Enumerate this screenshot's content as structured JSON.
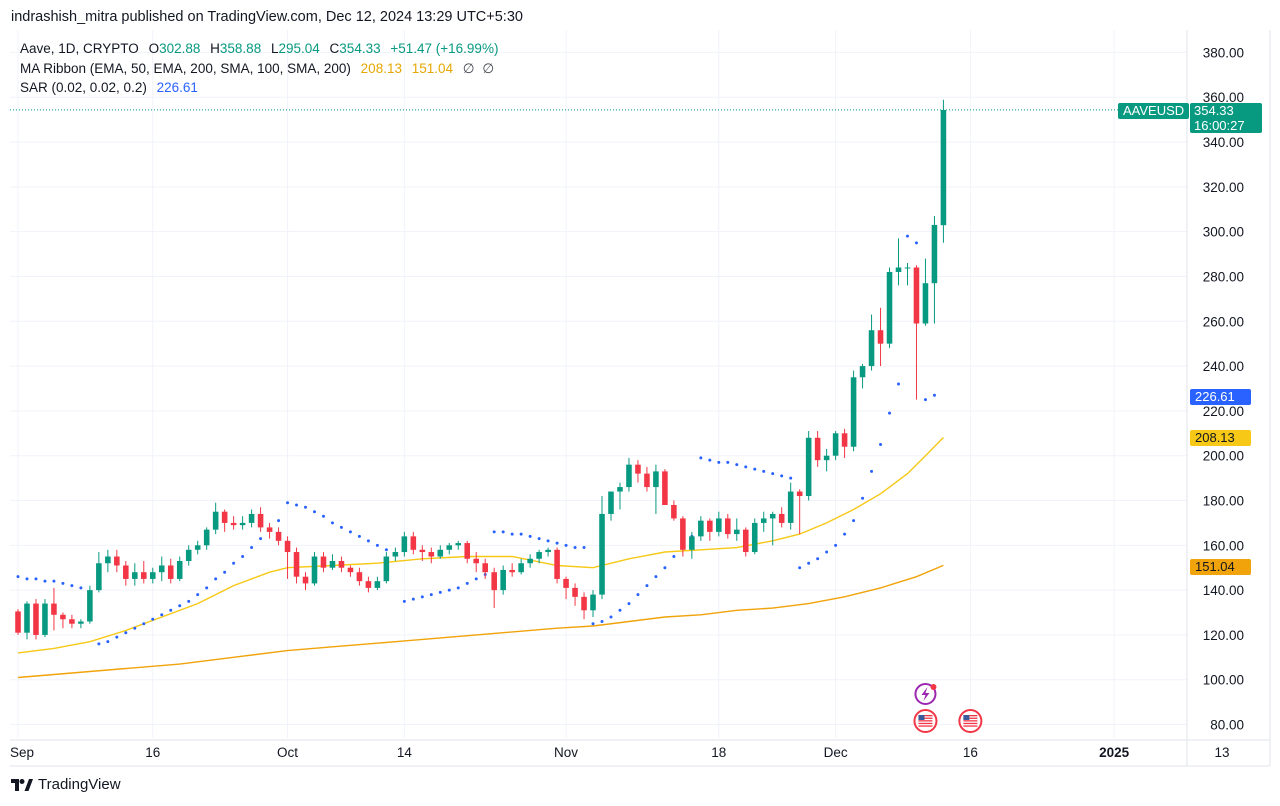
{
  "header": {
    "text": "indrashish_mitra published on TradingView.com, Dec 12, 2024 13:29 UTC+5:30"
  },
  "legend": {
    "symbol": "Aave, 1D, CRYPTO",
    "o_label": "O",
    "o_value": "302.88",
    "h_label": "H",
    "h_value": "358.88",
    "l_label": "L",
    "l_value": "295.04",
    "c_label": "C",
    "c_value": "354.33",
    "change": "+51.47 (+16.99%)",
    "ma_label": "MA Ribbon (EMA, 50, EMA, 200, SMA, 100, SMA, 200)",
    "ma_value_1": "208.13",
    "ma_value_2": "151.04",
    "ma_na_1": "∅",
    "ma_na_2": "∅",
    "sar_label": "SAR (0.02, 0.02, 0.2)",
    "sar_value": "226.61"
  },
  "price_tags": {
    "symbol_tag": "AAVEUSD",
    "last_price": "354.33",
    "countdown": "16:00:27",
    "sar": "226.61",
    "ma1": "208.13",
    "ma2": "151.04"
  },
  "colors": {
    "up": "#089981",
    "down": "#f23645",
    "sar": "#2962ff",
    "ma_fast": "#f7c815",
    "ma_slow": "#f0a30a",
    "grid": "#f0f3fa"
  },
  "footer": {
    "brand": "TradingView"
  },
  "event_icons": [
    "lightning-event-icon",
    "us-flag-event-icon",
    "us-flag-event-icon"
  ],
  "chart_data": {
    "type": "candlestick",
    "symbol": "AAVEUSD",
    "interval": "1D",
    "y_axis": {
      "ticks": [
        "80.00",
        "100.00",
        "120.00",
        "140.00",
        "160.00",
        "180.00",
        "200.00",
        "220.00",
        "240.00",
        "260.00",
        "280.00",
        "300.00",
        "320.00",
        "340.00",
        "360.00",
        "380.00"
      ],
      "ylim": [
        74,
        390
      ]
    },
    "x_axis": {
      "range_day_index": [
        0,
        131
      ],
      "ticks": [
        {
          "label": "Sep",
          "day": 0,
          "bold": false
        },
        {
          "label": "16",
          "day": 15,
          "bold": false
        },
        {
          "label": "Oct",
          "day": 30,
          "bold": false
        },
        {
          "label": "14",
          "day": 43,
          "bold": false
        },
        {
          "label": "Nov",
          "day": 61,
          "bold": false
        },
        {
          "label": "18",
          "day": 78,
          "bold": false
        },
        {
          "label": "Dec",
          "day": 91,
          "bold": false
        },
        {
          "label": "16",
          "day": 106,
          "bold": false
        },
        {
          "label": "2025",
          "day": 122,
          "bold": true
        },
        {
          "label": "13",
          "day": 134,
          "bold": false
        }
      ]
    },
    "candles": [
      [
        130.5,
        131.5,
        120.0,
        121.0
      ],
      [
        121.0,
        135.0,
        118.0,
        134.0
      ],
      [
        134.0,
        136.0,
        118.0,
        120.0
      ],
      [
        120.0,
        136.0,
        119.0,
        134.0
      ],
      [
        134.0,
        141.0,
        122.0,
        129.0
      ],
      [
        129.0,
        130.0,
        123.0,
        127.0
      ],
      [
        127.0,
        129.0,
        123.0,
        125.0
      ],
      [
        125.0,
        127.0,
        123.0,
        126.0
      ],
      [
        126.0,
        142.0,
        125.0,
        140.0
      ],
      [
        140.0,
        157.0,
        139.0,
        152.0
      ],
      [
        152.0,
        158.0,
        148.0,
        155.0
      ],
      [
        155.0,
        158.0,
        148.0,
        151.0
      ],
      [
        151.0,
        153.0,
        142.0,
        145.0
      ],
      [
        145.0,
        152.0,
        142.0,
        148.0
      ],
      [
        148.0,
        153.0,
        143.0,
        145.0
      ],
      [
        145.0,
        150.0,
        143.0,
        148.0
      ],
      [
        148.0,
        155.0,
        144.0,
        151.0
      ],
      [
        151.0,
        154.0,
        143.0,
        145.0
      ],
      [
        145.0,
        155.0,
        144.0,
        153.0
      ],
      [
        153.0,
        160.0,
        151.0,
        158.0
      ],
      [
        158.0,
        162.0,
        156.0,
        160.0
      ],
      [
        160.0,
        168.0,
        158.0,
        167.0
      ],
      [
        167.0,
        179.0,
        165.0,
        175.0
      ],
      [
        175.0,
        176.0,
        166.0,
        170.0
      ],
      [
        170.0,
        173.0,
        167.0,
        169.0
      ],
      [
        169.0,
        173.0,
        167.0,
        170.0
      ],
      [
        170.0,
        176.0,
        168.0,
        174.0
      ],
      [
        174.0,
        177.0,
        166.0,
        168.0
      ],
      [
        168.0,
        170.0,
        163.0,
        166.0
      ],
      [
        166.0,
        168.0,
        160.0,
        162.0
      ],
      [
        162.0,
        164.0,
        145.0,
        157.0
      ],
      [
        157.0,
        159.0,
        143.0,
        146.0
      ],
      [
        146.0,
        148.0,
        140.0,
        143.0
      ],
      [
        143.0,
        157.0,
        142.0,
        155.0
      ],
      [
        155.0,
        157.0,
        148.0,
        150.0
      ],
      [
        150.0,
        156.0,
        149.0,
        153.0
      ],
      [
        153.0,
        155.0,
        148.0,
        150.0
      ],
      [
        150.0,
        151.0,
        146.0,
        148.0
      ],
      [
        148.0,
        150.0,
        142.0,
        144.0
      ],
      [
        144.0,
        146.0,
        139.0,
        141.0
      ],
      [
        141.0,
        146.0,
        140.0,
        144.0
      ],
      [
        144.0,
        157.0,
        143.0,
        155.0
      ],
      [
        155.0,
        159.0,
        153.0,
        157.0
      ],
      [
        157.0,
        166.0,
        155.0,
        164.0
      ],
      [
        164.0,
        166.0,
        156.0,
        158.0
      ],
      [
        158.0,
        160.0,
        153.0,
        157.0
      ],
      [
        157.0,
        159.0,
        152.0,
        155.0
      ],
      [
        155.0,
        160.0,
        154.0,
        158.0
      ],
      [
        158.0,
        161.0,
        156.0,
        160.0
      ],
      [
        160.0,
        162.0,
        158.0,
        161.0
      ],
      [
        161.0,
        162.0,
        152.0,
        154.0
      ],
      [
        154.0,
        157.0,
        148.0,
        152.0
      ],
      [
        152.0,
        154.0,
        145.0,
        148.0
      ],
      [
        148.0,
        150.0,
        132.0,
        140.0
      ],
      [
        140.0,
        151.0,
        138.0,
        149.0
      ],
      [
        149.0,
        152.0,
        146.0,
        148.0
      ],
      [
        148.0,
        154.0,
        147.0,
        152.0
      ],
      [
        152.0,
        156.0,
        150.0,
        154.0
      ],
      [
        154.0,
        158.0,
        152.0,
        157.0
      ],
      [
        157.0,
        159.0,
        155.0,
        158.0
      ],
      [
        158.0,
        159.0,
        143.0,
        145.0
      ],
      [
        145.0,
        146.0,
        136.0,
        141.0
      ],
      [
        141.0,
        143.0,
        133.0,
        137.0
      ],
      [
        137.0,
        139.0,
        127.0,
        131.0
      ],
      [
        131.0,
        140.0,
        128.0,
        138.0
      ],
      [
        138.0,
        182.0,
        136.0,
        174.0
      ],
      [
        174.0,
        184.0,
        171.0,
        184.0
      ],
      [
        184.0,
        188.0,
        176.0,
        186.0
      ],
      [
        186.0,
        199.0,
        184.0,
        196.0
      ],
      [
        196.0,
        198.0,
        188.0,
        192.0
      ],
      [
        192.0,
        195.0,
        184.0,
        186.0
      ],
      [
        186.0,
        196.0,
        174.0,
        193.0
      ],
      [
        193.0,
        194.0,
        180.0,
        178.0
      ],
      [
        178.0,
        180.0,
        171.0,
        172.0
      ],
      [
        172.0,
        173.0,
        155.0,
        158.0
      ],
      [
        158.0,
        166.0,
        154.0,
        164.0
      ],
      [
        164.0,
        173.0,
        162.0,
        171.0
      ],
      [
        171.0,
        172.0,
        162.0,
        166.0
      ],
      [
        166.0,
        175.0,
        164.0,
        172.0
      ],
      [
        172.0,
        174.0,
        163.0,
        165.0
      ],
      [
        165.0,
        172.0,
        162.0,
        167.0
      ],
      [
        167.0,
        168.0,
        155.0,
        157.0
      ],
      [
        157.0,
        172.0,
        156.0,
        170.0
      ],
      [
        170.0,
        175.0,
        166.0,
        172.0
      ],
      [
        172.0,
        175.0,
        160.0,
        174.0
      ],
      [
        174.0,
        177.0,
        168.0,
        170.0
      ],
      [
        170.0,
        188.0,
        167.0,
        184.0
      ],
      [
        184.0,
        185.0,
        165.0,
        182.0
      ],
      [
        182.0,
        211.0,
        180.0,
        208.0
      ],
      [
        208.0,
        211.0,
        195.0,
        198.0
      ],
      [
        198.0,
        203.0,
        193.0,
        200.0
      ],
      [
        200.0,
        211.0,
        198.0,
        210.0
      ],
      [
        210.0,
        212.0,
        199.0,
        204.0
      ],
      [
        204.0,
        238.0,
        202.0,
        235.0
      ],
      [
        235.0,
        241.0,
        230.0,
        240.0
      ],
      [
        240.0,
        263.0,
        238.0,
        256.0
      ],
      [
        256.0,
        266.0,
        240.0,
        250.0
      ],
      [
        250.0,
        284.0,
        248.0,
        282.0
      ],
      [
        282.0,
        297.0,
        276.0,
        284.0
      ],
      [
        284.0,
        286.0,
        276.0,
        284.0
      ],
      [
        284.0,
        285.0,
        225.0,
        259.0
      ],
      [
        259.0,
        288.0,
        258.0,
        277.0
      ],
      [
        277.0,
        307.0,
        259.0,
        303.0
      ],
      [
        302.88,
        358.88,
        295.04,
        354.33
      ]
    ],
    "series": [
      {
        "name": "EMA 50",
        "color": "#f7c815",
        "points": [
          [
            0,
            112
          ],
          [
            4,
            114
          ],
          [
            8,
            117
          ],
          [
            12,
            122
          ],
          [
            16,
            128
          ],
          [
            20,
            134
          ],
          [
            24,
            142
          ],
          [
            28,
            148
          ],
          [
            30,
            150
          ],
          [
            35,
            151
          ],
          [
            40,
            152
          ],
          [
            45,
            154
          ],
          [
            50,
            155
          ],
          [
            55,
            155
          ],
          [
            60,
            151
          ],
          [
            64,
            150
          ],
          [
            68,
            154
          ],
          [
            72,
            157
          ],
          [
            76,
            158
          ],
          [
            80,
            159
          ],
          [
            84,
            162
          ],
          [
            87,
            165
          ],
          [
            90,
            170
          ],
          [
            93,
            176
          ],
          [
            96,
            183
          ],
          [
            99,
            192
          ],
          [
            101,
            200
          ],
          [
            103,
            208.13
          ]
        ]
      },
      {
        "name": "SMA 100",
        "color": "#f0a30a",
        "points": [
          [
            0,
            101
          ],
          [
            6,
            103
          ],
          [
            12,
            105
          ],
          [
            18,
            107
          ],
          [
            24,
            110
          ],
          [
            30,
            113
          ],
          [
            36,
            115
          ],
          [
            42,
            117
          ],
          [
            48,
            119
          ],
          [
            54,
            121
          ],
          [
            60,
            123
          ],
          [
            64,
            124
          ],
          [
            68,
            126
          ],
          [
            72,
            128
          ],
          [
            76,
            129
          ],
          [
            80,
            131
          ],
          [
            84,
            132
          ],
          [
            88,
            134
          ],
          [
            92,
            137
          ],
          [
            96,
            141
          ],
          [
            100,
            146
          ],
          [
            103,
            151.04
          ]
        ]
      }
    ],
    "sar": [
      [
        0,
        146
      ],
      [
        1,
        145
      ],
      [
        2,
        145
      ],
      [
        3,
        144
      ],
      [
        4,
        144
      ],
      [
        5,
        143
      ],
      [
        6,
        142
      ],
      [
        7,
        141
      ],
      [
        9,
        116
      ],
      [
        10,
        117
      ],
      [
        11,
        119
      ],
      [
        12,
        121
      ],
      [
        13,
        123
      ],
      [
        14,
        125
      ],
      [
        15,
        127
      ],
      [
        16,
        129
      ],
      [
        17,
        131
      ],
      [
        18,
        133
      ],
      [
        19,
        135
      ],
      [
        20,
        138
      ],
      [
        21,
        141
      ],
      [
        22,
        145
      ],
      [
        23,
        148
      ],
      [
        24,
        152
      ],
      [
        25,
        155
      ],
      [
        26,
        159
      ],
      [
        27,
        163
      ],
      [
        28,
        167
      ],
      [
        29,
        171
      ],
      [
        30,
        179
      ],
      [
        31,
        178
      ],
      [
        32,
        177
      ],
      [
        33,
        175
      ],
      [
        34,
        173
      ],
      [
        35,
        170
      ],
      [
        36,
        168
      ],
      [
        37,
        166
      ],
      [
        38,
        164
      ],
      [
        39,
        162
      ],
      [
        40,
        160
      ],
      [
        41,
        158
      ],
      [
        42,
        156
      ],
      [
        43,
        135
      ],
      [
        44,
        136
      ],
      [
        45,
        137
      ],
      [
        46,
        138
      ],
      [
        47,
        139
      ],
      [
        48,
        140
      ],
      [
        49,
        141
      ],
      [
        50,
        143
      ],
      [
        51,
        145
      ],
      [
        52,
        147
      ],
      [
        53,
        166
      ],
      [
        54,
        166
      ],
      [
        55,
        165
      ],
      [
        56,
        165
      ],
      [
        57,
        164
      ],
      [
        58,
        163
      ],
      [
        59,
        162
      ],
      [
        60,
        161
      ],
      [
        61,
        160
      ],
      [
        62,
        159
      ],
      [
        63,
        159
      ],
      [
        64,
        125
      ],
      [
        65,
        126
      ],
      [
        66,
        128
      ],
      [
        67,
        131
      ],
      [
        68,
        134
      ],
      [
        69,
        138
      ],
      [
        70,
        142
      ],
      [
        71,
        146
      ],
      [
        72,
        150
      ],
      [
        73,
        155
      ],
      [
        74,
        159
      ],
      [
        75,
        164
      ],
      [
        76,
        199
      ],
      [
        77,
        198
      ],
      [
        78,
        197
      ],
      [
        79,
        197
      ],
      [
        80,
        196
      ],
      [
        81,
        195
      ],
      [
        82,
        194
      ],
      [
        83,
        193
      ],
      [
        84,
        192
      ],
      [
        85,
        191
      ],
      [
        86,
        190
      ],
      [
        87,
        150
      ],
      [
        88,
        152
      ],
      [
        89,
        154
      ],
      [
        90,
        157
      ],
      [
        91,
        160
      ],
      [
        92,
        165
      ],
      [
        93,
        171
      ],
      [
        94,
        181
      ],
      [
        95,
        193
      ],
      [
        96,
        205
      ],
      [
        97,
        219
      ],
      [
        98,
        232
      ],
      [
        99,
        298
      ],
      [
        100,
        295
      ],
      [
        101,
        225
      ],
      [
        102,
        227
      ]
    ],
    "price_line": 354.33,
    "events": [
      {
        "type": "lightning",
        "day": 101
      },
      {
        "type": "us-flag",
        "day": 101
      },
      {
        "type": "us-flag",
        "day": 106
      }
    ]
  }
}
